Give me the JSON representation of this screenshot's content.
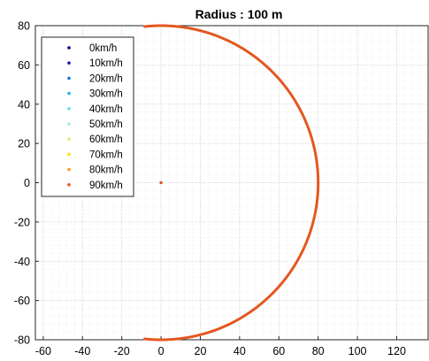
{
  "chart_data": {
    "type": "scatter",
    "title": "Radius : 100 m",
    "xlabel": "",
    "ylabel": "",
    "xlim": [
      -64,
      136
    ],
    "ylim": [
      -80,
      80
    ],
    "xticks": [
      -60,
      -40,
      -20,
      0,
      20,
      40,
      60,
      80,
      100,
      120
    ],
    "yticks": [
      80,
      60,
      40,
      20,
      0,
      -20,
      -40,
      -60,
      -80
    ],
    "grid": "major and minor, dotted",
    "legend_position": "top-left",
    "series": [
      {
        "name": "0km/h",
        "color": "#00008b",
        "points": [
          [
            0,
            0
          ]
        ]
      },
      {
        "name": "10km/h",
        "color": "#1414c8",
        "points": []
      },
      {
        "name": "20km/h",
        "color": "#1e6fd9",
        "points": []
      },
      {
        "name": "30km/h",
        "color": "#29b3e6",
        "points": []
      },
      {
        "name": "40km/h",
        "color": "#5fe0f0",
        "points": []
      },
      {
        "name": "50km/h",
        "color": "#9ef0d0",
        "points": []
      },
      {
        "name": "60km/h",
        "color": "#e3ea7a",
        "points": []
      },
      {
        "name": "70km/h",
        "color": "#ffe000",
        "points": []
      },
      {
        "name": "80km/h",
        "color": "#ffa019",
        "points": []
      },
      {
        "name": "90km/h",
        "color": "#e4571f",
        "points": [
          [
            0,
            0
          ]
        ],
        "arc": {
          "center": [
            0,
            0
          ],
          "radius": 80,
          "theta_start_deg": 96,
          "theta_end_deg": -96
        }
      }
    ]
  }
}
